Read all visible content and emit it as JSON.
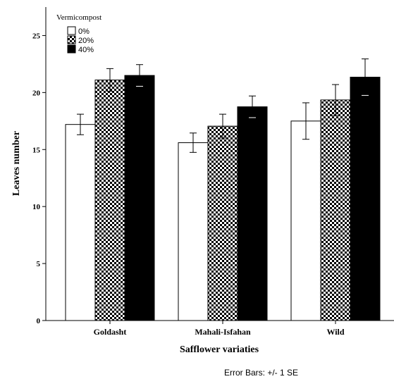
{
  "chart_data": {
    "type": "bar",
    "categories": [
      "Goldasht",
      "Mahali-Isfahan",
      "Wild"
    ],
    "series": [
      {
        "name": "0%",
        "values": [
          17.2,
          15.6,
          17.5
        ],
        "se": [
          0.9,
          0.85,
          1.6
        ],
        "pattern": "white"
      },
      {
        "name": "20%",
        "values": [
          21.1,
          17.05,
          19.35
        ],
        "se": [
          1.0,
          1.05,
          1.35
        ],
        "pattern": "checker"
      },
      {
        "name": "40%",
        "values": [
          21.5,
          18.75,
          21.35
        ],
        "se": [
          0.95,
          0.95,
          1.6
        ],
        "pattern": "black"
      }
    ],
    "xlabel": "Safflower variaties",
    "ylabel": "Leaves number",
    "ylim": [
      0,
      27.5
    ],
    "yticks": [
      0,
      5,
      10,
      15,
      20,
      25
    ],
    "legend": {
      "title": "Vermicompost",
      "placement": "top-left"
    },
    "footnote": "Error Bars: +/- 1 SE",
    "grid": false
  }
}
